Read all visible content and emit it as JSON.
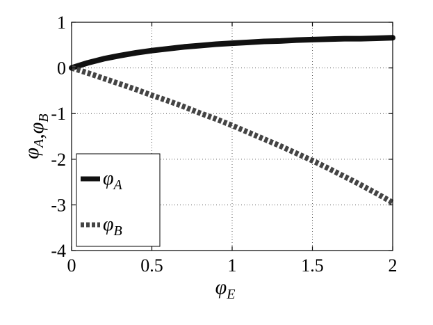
{
  "chart_data": {
    "type": "line",
    "xlabel": {
      "base": "φ",
      "sub": "E"
    },
    "ylabel": {
      "parts": [
        {
          "base": "φ",
          "sub": "A"
        },
        {
          "sep": ","
        },
        {
          "base": "φ",
          "sub": "B"
        }
      ]
    },
    "xlim": [
      0,
      2
    ],
    "ylim": [
      -4,
      1
    ],
    "xticks": [
      0,
      0.5,
      1,
      1.5,
      2
    ],
    "xtick_labels": [
      "0",
      "0.5",
      "1",
      "1.5",
      "2"
    ],
    "yticks": [
      -4,
      -3,
      -2,
      -1,
      0,
      1
    ],
    "ytick_labels": [
      "-4",
      "-3",
      "-2",
      "-1",
      "0",
      "1"
    ],
    "grid": true,
    "legend_position": "lower-left",
    "series": [
      {
        "name": {
          "base": "φ",
          "sub": "A"
        },
        "style": "solid",
        "color": "#111111",
        "x": [
          0,
          0.1,
          0.2,
          0.3,
          0.4,
          0.5,
          0.6,
          0.7,
          0.8,
          0.9,
          1.0,
          1.1,
          1.2,
          1.3,
          1.4,
          1.5,
          1.6,
          1.7,
          1.8,
          1.9,
          2.0
        ],
        "y": [
          0,
          0.11,
          0.2,
          0.27,
          0.33,
          0.38,
          0.42,
          0.46,
          0.49,
          0.52,
          0.54,
          0.56,
          0.58,
          0.59,
          0.61,
          0.62,
          0.63,
          0.64,
          0.64,
          0.65,
          0.66
        ]
      },
      {
        "name": {
          "base": "φ",
          "sub": "B"
        },
        "style": "dotted",
        "color": "#444444",
        "x": [
          0,
          0.1,
          0.2,
          0.3,
          0.4,
          0.5,
          0.6,
          0.7,
          0.8,
          0.9,
          1.0,
          1.1,
          1.2,
          1.3,
          1.4,
          1.5,
          1.6,
          1.7,
          1.8,
          1.9,
          2.0
        ],
        "y": [
          0,
          -0.11,
          -0.23,
          -0.35,
          -0.47,
          -0.6,
          -0.72,
          -0.85,
          -0.99,
          -1.12,
          -1.26,
          -1.41,
          -1.56,
          -1.71,
          -1.87,
          -2.03,
          -2.2,
          -2.38,
          -2.56,
          -2.75,
          -2.95
        ]
      }
    ]
  }
}
